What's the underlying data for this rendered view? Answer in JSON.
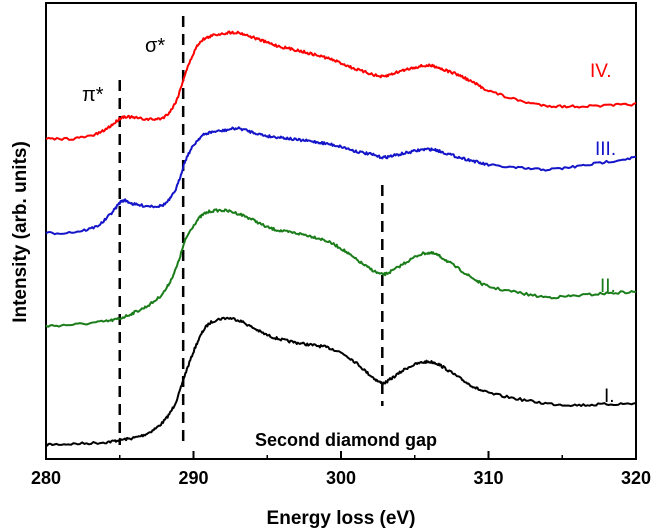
{
  "chart_data": {
    "type": "line",
    "title": "",
    "xlabel": "Energy loss (eV)",
    "ylabel": "Intensity (arb. units)",
    "xlim": [
      280,
      320
    ],
    "x_ticks": [
      "280",
      "290",
      "300",
      "310",
      "320"
    ],
    "y_ticks_labeled": false,
    "grid": false,
    "legend": "none",
    "series": [
      {
        "name": "I.",
        "color": "#000000",
        "points": [
          [
            280,
            0.04
          ],
          [
            282,
            0.05
          ],
          [
            284,
            0.07
          ],
          [
            285,
            0.1
          ],
          [
            286,
            0.13
          ],
          [
            287,
            0.2
          ],
          [
            288,
            0.35
          ],
          [
            288.8,
            0.6
          ],
          [
            289.5,
            1.0
          ],
          [
            290.3,
            1.4
          ],
          [
            291,
            1.62
          ],
          [
            292,
            1.7
          ],
          [
            293,
            1.68
          ],
          [
            294,
            1.58
          ],
          [
            295,
            1.48
          ],
          [
            296,
            1.42
          ],
          [
            297,
            1.38
          ],
          [
            298,
            1.35
          ],
          [
            299,
            1.32
          ],
          [
            300,
            1.25
          ],
          [
            301,
            1.12
          ],
          [
            302,
            0.95
          ],
          [
            302.8,
            0.85
          ],
          [
            303.5,
            0.92
          ],
          [
            304.5,
            1.05
          ],
          [
            305.5,
            1.12
          ],
          [
            306.3,
            1.12
          ],
          [
            307,
            1.05
          ],
          [
            308,
            0.92
          ],
          [
            309,
            0.8
          ],
          [
            310,
            0.72
          ],
          [
            312,
            0.64
          ],
          [
            314,
            0.58
          ],
          [
            316,
            0.56
          ],
          [
            318,
            0.57
          ],
          [
            320,
            0.58
          ]
        ]
      },
      {
        "name": "II.",
        "color": "#1a7d1a",
        "points": [
          [
            280,
            1.6
          ],
          [
            282,
            1.62
          ],
          [
            284,
            1.66
          ],
          [
            285,
            1.7
          ],
          [
            286,
            1.78
          ],
          [
            287,
            1.88
          ],
          [
            288,
            2.05
          ],
          [
            288.8,
            2.35
          ],
          [
            289.5,
            2.75
          ],
          [
            290.3,
            3.0
          ],
          [
            291,
            3.1
          ],
          [
            292,
            3.12
          ],
          [
            293,
            3.08
          ],
          [
            294,
            3.0
          ],
          [
            295,
            2.9
          ],
          [
            296,
            2.85
          ],
          [
            297,
            2.82
          ],
          [
            298,
            2.78
          ],
          [
            299,
            2.72
          ],
          [
            300,
            2.62
          ],
          [
            301,
            2.48
          ],
          [
            302,
            2.35
          ],
          [
            302.8,
            2.28
          ],
          [
            303.5,
            2.33
          ],
          [
            304.5,
            2.45
          ],
          [
            305.5,
            2.55
          ],
          [
            306.3,
            2.55
          ],
          [
            307,
            2.48
          ],
          [
            308,
            2.35
          ],
          [
            309,
            2.22
          ],
          [
            310,
            2.12
          ],
          [
            312,
            2.04
          ],
          [
            314,
            1.98
          ],
          [
            316,
            2.0
          ],
          [
            318,
            2.03
          ],
          [
            320,
            2.05
          ]
        ]
      },
      {
        "name": "III.",
        "color": "#1414c8",
        "points": [
          [
            280,
            2.82
          ],
          [
            282,
            2.84
          ],
          [
            283.5,
            2.92
          ],
          [
            284.5,
            3.1
          ],
          [
            285.2,
            3.25
          ],
          [
            286,
            3.2
          ],
          [
            287,
            3.18
          ],
          [
            288,
            3.2
          ],
          [
            288.8,
            3.4
          ],
          [
            289.5,
            3.8
          ],
          [
            290.3,
            4.05
          ],
          [
            291,
            4.14
          ],
          [
            292,
            4.17
          ],
          [
            293,
            4.2
          ],
          [
            294,
            4.15
          ],
          [
            295,
            4.1
          ],
          [
            296,
            4.08
          ],
          [
            297,
            4.05
          ],
          [
            298,
            4.03
          ],
          [
            299,
            4.0
          ],
          [
            300,
            3.96
          ],
          [
            301,
            3.9
          ],
          [
            302,
            3.86
          ],
          [
            302.8,
            3.82
          ],
          [
            303.5,
            3.84
          ],
          [
            304.5,
            3.88
          ],
          [
            305.5,
            3.92
          ],
          [
            306.3,
            3.92
          ],
          [
            307,
            3.88
          ],
          [
            308,
            3.82
          ],
          [
            309,
            3.77
          ],
          [
            310,
            3.72
          ],
          [
            312,
            3.68
          ],
          [
            314,
            3.66
          ],
          [
            316,
            3.7
          ],
          [
            318,
            3.76
          ],
          [
            320,
            3.82
          ]
        ]
      },
      {
        "name": "IV.",
        "color": "#ff0000",
        "points": [
          [
            280,
            4.06
          ],
          [
            282,
            4.07
          ],
          [
            283.5,
            4.13
          ],
          [
            284.5,
            4.25
          ],
          [
            285.2,
            4.35
          ],
          [
            286,
            4.34
          ],
          [
            287,
            4.32
          ],
          [
            288,
            4.35
          ],
          [
            288.8,
            4.55
          ],
          [
            289.5,
            4.95
          ],
          [
            290.3,
            5.3
          ],
          [
            291,
            5.4
          ],
          [
            292,
            5.45
          ],
          [
            293,
            5.46
          ],
          [
            294,
            5.4
          ],
          [
            295,
            5.33
          ],
          [
            296,
            5.27
          ],
          [
            297,
            5.23
          ],
          [
            298,
            5.18
          ],
          [
            299,
            5.13
          ],
          [
            300,
            5.06
          ],
          [
            301,
            4.98
          ],
          [
            302,
            4.92
          ],
          [
            302.8,
            4.88
          ],
          [
            303.5,
            4.92
          ],
          [
            304.5,
            4.98
          ],
          [
            305.5,
            5.02
          ],
          [
            306.3,
            5.02
          ],
          [
            307,
            4.97
          ],
          [
            308,
            4.9
          ],
          [
            309,
            4.8
          ],
          [
            310,
            4.7
          ],
          [
            312,
            4.57
          ],
          [
            314,
            4.5
          ],
          [
            316,
            4.49
          ],
          [
            318,
            4.5
          ],
          [
            320,
            4.52
          ]
        ]
      }
    ],
    "ylim": [
      -0.15,
      5.85
    ],
    "dashed_lines_x": [
      285,
      289.3,
      302.8
    ],
    "annotations": {
      "pi_star": "π*",
      "sigma_star": "σ*",
      "gap_label": "Second diamond gap"
    }
  }
}
